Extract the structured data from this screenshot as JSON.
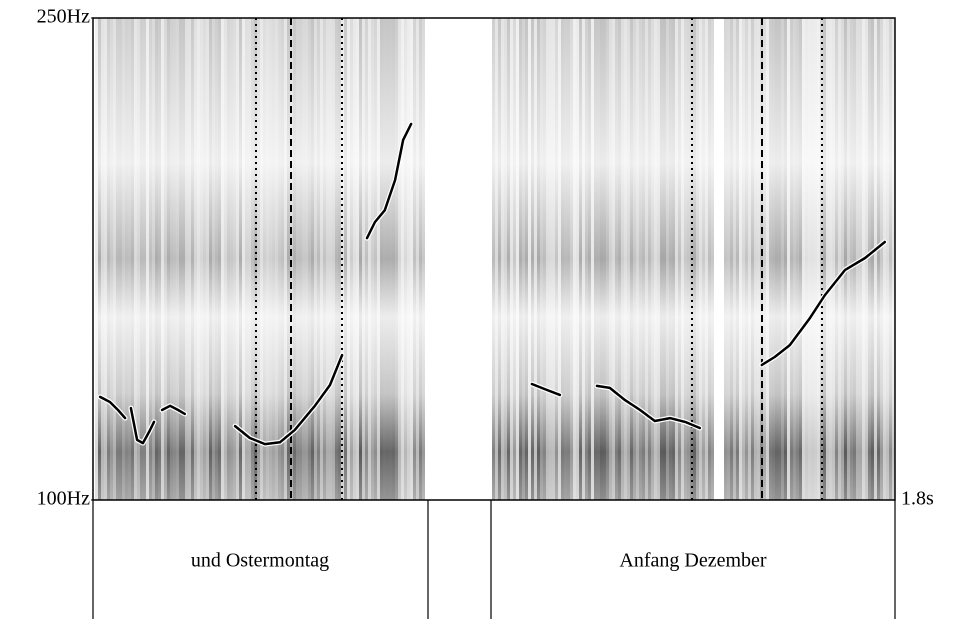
{
  "chart_data": {
    "type": "line",
    "ylim": [
      100,
      250
    ],
    "yticks": [
      {
        "value": 100,
        "label": "100Hz"
      },
      {
        "value": 250,
        "label": "250Hz"
      }
    ],
    "xlim": [
      0,
      1.8
    ],
    "xticks": [
      {
        "value": 1.8,
        "label": "1.8s"
      }
    ],
    "color": "#000000",
    "x": [
      0.016,
      0.038,
      0.056,
      0.072,
      null,
      0.085,
      0.099,
      0.112,
      0.126,
      0.137,
      null,
      0.155,
      0.173,
      0.191,
      0.206,
      null,
      0.319,
      0.352,
      0.386,
      0.42,
      0.453,
      0.498,
      0.532,
      0.559,
      null,
      0.615,
      0.633,
      0.655,
      0.678,
      0.696,
      0.714,
      null,
      0.985,
      1.014,
      1.048,
      null,
      1.131,
      1.16,
      1.194,
      1.228,
      1.261,
      1.295,
      1.329,
      1.362,
      null,
      1.501,
      1.53,
      1.564,
      1.609,
      1.643,
      1.688,
      1.733,
      1.777
    ],
    "values": [
      132.1,
      130.5,
      128.0,
      125.5,
      null,
      128.6,
      118.7,
      117.7,
      121.2,
      124.3,
      null,
      128.0,
      129.3,
      128.0,
      126.8,
      null,
      123.0,
      119.3,
      117.4,
      118.0,
      121.8,
      129.3,
      135.8,
      145.1,
      null,
      181.5,
      186.5,
      190.2,
      199.6,
      212.0,
      217.0,
      null,
      136.1,
      134.5,
      132.7,
      null,
      135.5,
      134.9,
      131.1,
      128.0,
      124.6,
      125.5,
      124.3,
      122.4,
      null,
      142.0,
      144.5,
      148.2,
      156.6,
      163.8,
      171.6,
      175.3,
      180.3
    ],
    "text_tier": [
      "und Ostermontag",
      "Anfang Dezember"
    ]
  }
}
